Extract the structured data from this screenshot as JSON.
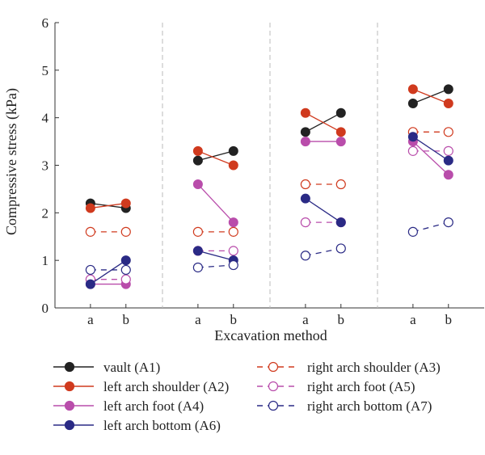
{
  "chart_data": {
    "type": "line",
    "xlabel": "Excavation method",
    "ylabel": "Compressive stress (kPa)",
    "ylim": [
      0,
      6
    ],
    "yticks": [
      "0",
      "1",
      "2",
      "3",
      "4",
      "5",
      "6"
    ],
    "groups": 4,
    "categories": [
      "a",
      "b"
    ],
    "grid": false,
    "group_separators": "dashed vertical lines",
    "legend_position": "bottom",
    "series": [
      {
        "name": "vault (A1)",
        "color": "#222222",
        "marker": "filled",
        "line": "solid",
        "values": [
          [
            2.2,
            2.1
          ],
          [
            3.1,
            3.3
          ],
          [
            3.7,
            4.1
          ],
          [
            4.3,
            4.6
          ]
        ]
      },
      {
        "name": "left arch shoulder (A2)",
        "color": "#d03a1e",
        "marker": "filled",
        "line": "solid",
        "values": [
          [
            2.1,
            2.2
          ],
          [
            3.3,
            3.0
          ],
          [
            4.1,
            3.7
          ],
          [
            4.6,
            4.3
          ]
        ]
      },
      {
        "name": "right arch shoulder (A3)",
        "color": "#d03a1e",
        "marker": "open",
        "line": "dashed",
        "values": [
          [
            1.6,
            1.6
          ],
          [
            1.6,
            1.6
          ],
          [
            2.6,
            2.6
          ],
          [
            3.7,
            3.7
          ]
        ]
      },
      {
        "name": "left arch foot (A4)",
        "color": "#b94dab",
        "marker": "filled",
        "line": "solid",
        "values": [
          [
            0.5,
            0.5
          ],
          [
            2.6,
            1.8
          ],
          [
            3.5,
            3.5
          ],
          [
            3.5,
            2.8
          ]
        ]
      },
      {
        "name": "right arch foot (A5)",
        "color": "#b94dab",
        "marker": "open",
        "line": "dashed",
        "values": [
          [
            0.6,
            0.6
          ],
          [
            1.2,
            1.2
          ],
          [
            1.8,
            1.8
          ],
          [
            3.3,
            3.3
          ]
        ]
      },
      {
        "name": "left arch bottom (A6)",
        "color": "#2a2a85",
        "marker": "filled",
        "line": "solid",
        "values": [
          [
            0.5,
            1.0
          ],
          [
            1.2,
            1.0
          ],
          [
            2.3,
            1.8
          ],
          [
            3.6,
            3.1
          ]
        ]
      },
      {
        "name": "right arch bottom (A7)",
        "color": "#2a2a85",
        "marker": "open",
        "line": "dashed",
        "values": [
          [
            0.8,
            0.8
          ],
          [
            0.85,
            0.9
          ],
          [
            1.1,
            1.25
          ],
          [
            1.6,
            1.8
          ]
        ]
      }
    ],
    "legend_order": [
      0,
      2,
      1,
      4,
      3,
      6,
      5
    ]
  }
}
